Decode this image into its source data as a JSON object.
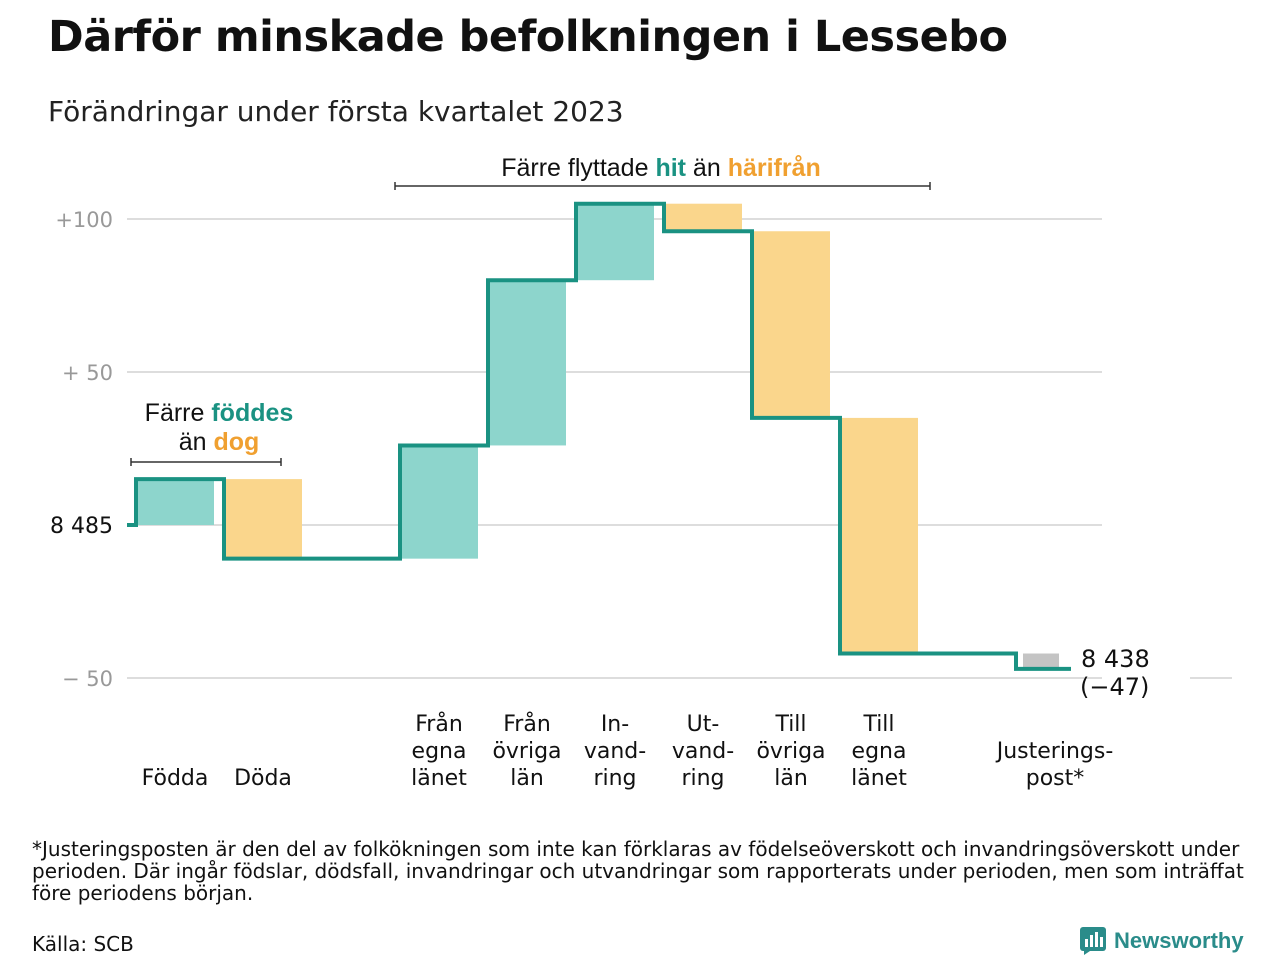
{
  "title": "Därför minskade befolkningen i Lessebo",
  "subtitle": "Förändringar under första kvartalet 2023",
  "colors": {
    "increase": "#8dd5cc",
    "decrease": "#fad68c",
    "adjustment": "#c4c4c4",
    "line": "#1a9282",
    "hit": "#1a9282",
    "harifran": "#f0a030",
    "grid": "#dddddd",
    "axis_label": "#999999",
    "brand": "#2a8c8a"
  },
  "chart_data": {
    "type": "waterfall",
    "start_value": 8485,
    "start_label": "8 485",
    "end_value": 8438,
    "end_label": "8 438",
    "end_change_label": "(−47)",
    "y_ticks": [
      {
        "value": 100,
        "label": "+100"
      },
      {
        "value": 50,
        "label": "+ 50"
      },
      {
        "value": 0,
        "label": ""
      },
      {
        "value": -50,
        "label": "− 50"
      }
    ],
    "ylim": [
      -55,
      108
    ],
    "steps": [
      {
        "label_lines": [
          "Födda"
        ],
        "change": 15,
        "kind": "increase"
      },
      {
        "label_lines": [
          "Döda"
        ],
        "change": -26,
        "kind": "decrease"
      },
      {
        "label_lines": [],
        "change": 0,
        "kind": "gap"
      },
      {
        "label_lines": [
          "Från",
          "egna",
          "länet"
        ],
        "change": 37,
        "kind": "increase"
      },
      {
        "label_lines": [
          "Från",
          "övriga",
          "län"
        ],
        "change": 54,
        "kind": "increase"
      },
      {
        "label_lines": [
          "In-",
          "vand-",
          "ring"
        ],
        "change": 25,
        "kind": "increase"
      },
      {
        "label_lines": [
          "Ut-",
          "vand-",
          "ring"
        ],
        "change": -9,
        "kind": "decrease"
      },
      {
        "label_lines": [
          "Till",
          "övriga",
          "län"
        ],
        "change": -61,
        "kind": "decrease"
      },
      {
        "label_lines": [
          "Till",
          "egna",
          "länet"
        ],
        "change": -77,
        "kind": "decrease"
      },
      {
        "label_lines": [],
        "change": 0,
        "kind": "gap"
      },
      {
        "label_lines": [
          "Justerings-",
          "post*"
        ],
        "change": -5,
        "kind": "adjustment"
      }
    ],
    "annotations": [
      {
        "parts": [
          {
            "text": "Färre ",
            "color": "#111111",
            "bold": false
          },
          {
            "text": "föddes",
            "color": "#1a9282",
            "bold": true
          }
        ],
        "parts2": [
          {
            "text": "än ",
            "color": "#111111",
            "bold": false
          },
          {
            "text": "dog",
            "color": "#f0a030",
            "bold": true
          }
        ],
        "span": [
          0,
          1
        ]
      },
      {
        "parts": [
          {
            "text": "Färre flyttade ",
            "color": "#111111",
            "bold": false
          },
          {
            "text": "hit",
            "color": "#1a9282",
            "bold": true
          },
          {
            "text": " än ",
            "color": "#111111",
            "bold": false
          },
          {
            "text": "härifrån",
            "color": "#f0a030",
            "bold": true
          }
        ],
        "parts2": [],
        "span": [
          3,
          8
        ]
      }
    ]
  },
  "footnote": "*Justeringsposten är den del av folkökningen som inte kan förklaras av födelseöverskott och invandringsöverskott under perioden. Där ingår födslar, dödsfall, invandringar och utvandringar som rapporterats under perioden, men som inträffat före periodens början.",
  "source": "Källa: SCB",
  "brand": {
    "name": "Newsworthy",
    "icon": "bar-chart-logo-icon"
  }
}
